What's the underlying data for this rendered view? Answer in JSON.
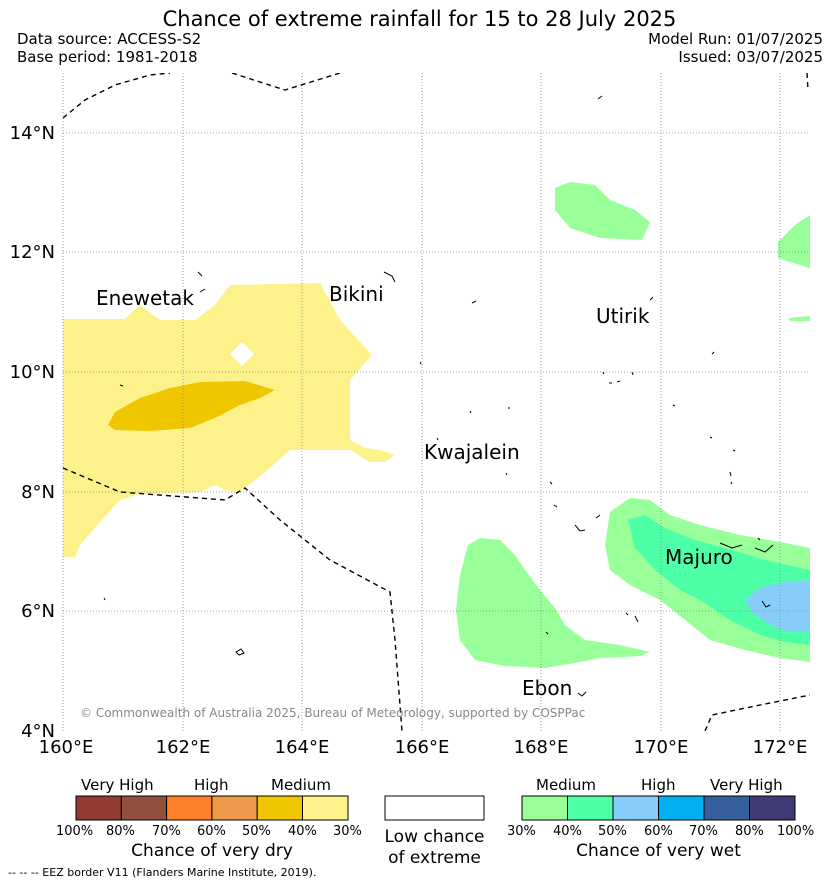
{
  "title": "Chance of extreme rainfall for 15 to 28 July 2025",
  "meta_left": [
    "Data source: ACCESS-S2",
    "Base period: 1981-2018"
  ],
  "meta_right": [
    "Model Run: 01/07/2025",
    "Issued: 03/07/2025"
  ],
  "map": {
    "lat_range": [
      "4°N",
      "15°N"
    ],
    "lon_range": [
      "160°E",
      "172.5°E"
    ],
    "lat_ticks": [
      "14°N",
      "12°N",
      "10°N",
      "8°N",
      "6°N",
      "4°N"
    ],
    "lon_ticks": [
      "160°E",
      "162°E",
      "164°E",
      "166°E",
      "168°E",
      "170°E",
      "172°E"
    ],
    "grid": "dotted",
    "places": [
      "Enewetak",
      "Bikini",
      "Utirik",
      "Kwajalein",
      "Majuro",
      "Ebon"
    ],
    "copyright": "© Commonwealth of Australia 2025, Bureau of Meteorology, supported by COSPPac",
    "colors": {
      "dry_medium_light": "#fdf28a",
      "dry_medium": "#efc600",
      "wet_medium": "#99ff99",
      "wet_medium_dark": "#4dffa6",
      "wet_high": "#87cefa"
    }
  },
  "legend": {
    "dry": {
      "headings": [
        "Very High",
        "High",
        "Medium"
      ],
      "colors": [
        "#923c32",
        "#8e4f3d",
        "#ff7f2a",
        "#ec9a4a",
        "#efc600",
        "#fdf28a"
      ],
      "ticks": [
        "100%",
        "80%",
        "70%",
        "60%",
        "50%",
        "40%",
        "30%"
      ],
      "caption": "Chance of very dry"
    },
    "neutral": {
      "caption_lines": [
        "Low chance",
        "of extreme"
      ],
      "color": "#ffffff"
    },
    "wet": {
      "headings": [
        "Medium",
        "High",
        "Very High"
      ],
      "colors": [
        "#99ff99",
        "#4dffa6",
        "#87cefa",
        "#00b0f0",
        "#365f9e",
        "#3e3b75"
      ],
      "ticks": [
        "30%",
        "40%",
        "50%",
        "60%",
        "70%",
        "80%",
        "100%"
      ],
      "caption": "Chance of very wet"
    }
  },
  "footnote": "--  --  -- EEZ border V11 (Flanders Marine Institute, 2019)."
}
